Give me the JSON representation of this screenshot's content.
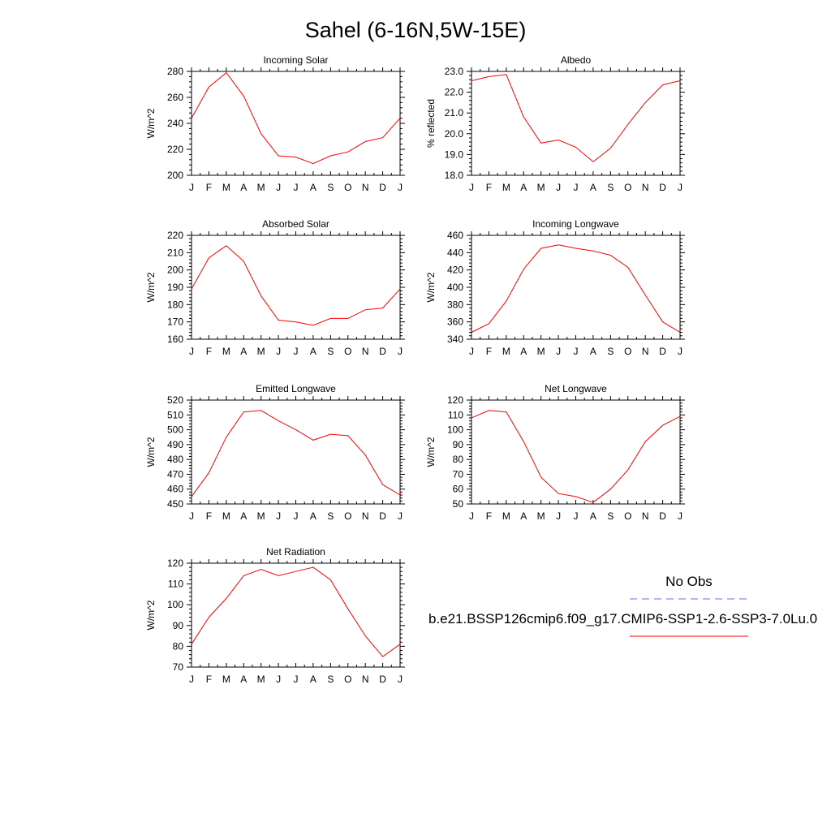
{
  "title": "Sahel (6-16N,5W-15E)",
  "months": [
    "J",
    "F",
    "M",
    "A",
    "M",
    "J",
    "J",
    "A",
    "S",
    "O",
    "N",
    "D",
    "J"
  ],
  "legend": {
    "obs_label": "No Obs",
    "model_label": "b.e21.BSSP126cmip6.f09_g17.CMIP6-SSP1-2.6-SSP3-7.0Lu.0",
    "obs_color": "#6b6bff",
    "model_color": "#ff0000"
  },
  "colors": {
    "line": "#ff0000",
    "axis": "#000000"
  },
  "chart_data": [
    {
      "type": "line",
      "title": "Incoming Solar",
      "ylabel": "W/m^2",
      "ylim": [
        200,
        280
      ],
      "yticks": [
        200,
        220,
        240,
        260,
        280
      ],
      "ytick_labels": [
        "200",
        "220",
        "240",
        "260",
        "280"
      ],
      "values": [
        244,
        268,
        279,
        261,
        232,
        215,
        214,
        209,
        215,
        218,
        226,
        229,
        244
      ]
    },
    {
      "type": "line",
      "title": "Albedo",
      "ylabel": "% reflected",
      "ylim": [
        18,
        23
      ],
      "yticks": [
        18,
        19,
        20,
        21,
        22,
        23
      ],
      "ytick_labels": [
        "18.0",
        "19.0",
        "20.0",
        "21.0",
        "22.0",
        "23.0"
      ],
      "values": [
        22.55,
        22.75,
        22.85,
        20.8,
        19.55,
        19.7,
        19.35,
        18.65,
        19.3,
        20.45,
        21.5,
        22.35,
        22.55
      ]
    },
    {
      "type": "line",
      "title": "Absorbed Solar",
      "ylabel": "W/m^2",
      "ylim": [
        160,
        220
      ],
      "yticks": [
        160,
        170,
        180,
        190,
        200,
        210,
        220
      ],
      "ytick_labels": [
        "160",
        "170",
        "180",
        "190",
        "200",
        "210",
        "220"
      ],
      "values": [
        189,
        207,
        214,
        205,
        185,
        171,
        170,
        168,
        172,
        172,
        177,
        178,
        189
      ]
    },
    {
      "type": "line",
      "title": "Incoming Longwave",
      "ylabel": "W/m^2",
      "ylim": [
        340,
        460
      ],
      "yticks": [
        340,
        360,
        380,
        400,
        420,
        440,
        460
      ],
      "ytick_labels": [
        "340",
        "360",
        "380",
        "400",
        "420",
        "440",
        "460"
      ],
      "values": [
        348,
        358,
        384,
        421,
        445,
        449,
        445,
        442,
        437,
        423,
        391,
        360,
        348
      ]
    },
    {
      "type": "line",
      "title": "Emitted Longwave",
      "ylabel": "W/m^2",
      "ylim": [
        450,
        520
      ],
      "yticks": [
        450,
        460,
        470,
        480,
        490,
        500,
        510,
        520
      ],
      "ytick_labels": [
        "450",
        "460",
        "470",
        "480",
        "490",
        "500",
        "510",
        "520"
      ],
      "values": [
        455,
        471,
        495,
        512,
        513,
        506,
        500,
        493,
        497,
        496,
        483,
        463,
        456
      ]
    },
    {
      "type": "line",
      "title": "Net Longwave",
      "ylabel": "W/m^2",
      "ylim": [
        50,
        120
      ],
      "yticks": [
        50,
        60,
        70,
        80,
        90,
        100,
        110,
        120
      ],
      "ytick_labels": [
        "50",
        "60",
        "70",
        "80",
        "90",
        "100",
        "110",
        "120"
      ],
      "values": [
        108,
        113,
        112,
        92,
        68,
        57,
        55,
        51,
        60,
        73,
        92,
        103,
        109
      ]
    },
    {
      "type": "line",
      "title": "Net Radiation",
      "ylabel": "W/m^2",
      "ylim": [
        70,
        120
      ],
      "yticks": [
        70,
        80,
        90,
        100,
        110,
        120
      ],
      "ytick_labels": [
        "70",
        "80",
        "90",
        "100",
        "110",
        "120"
      ],
      "values": [
        81,
        94,
        103,
        114,
        117,
        114,
        116,
        118,
        112,
        98,
        85,
        75,
        81
      ]
    }
  ]
}
